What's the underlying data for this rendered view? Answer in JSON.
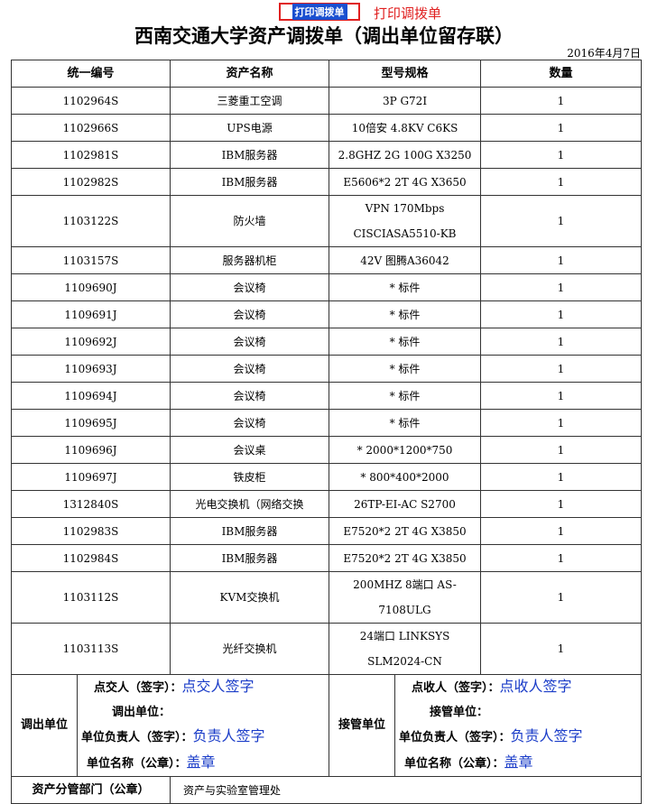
{
  "header": {
    "print_button": "打印调拨单",
    "print_link": "打印调拨单",
    "title": "西南交通大学资产调拨单（调出单位留存联）",
    "date": "2016年4月7日"
  },
  "table": {
    "columns": [
      "统一编号",
      "资产名称",
      "型号规格",
      "数量"
    ],
    "rows": [
      [
        "1102964S",
        "三菱重工空调",
        "3P G72I",
        1
      ],
      [
        "1102966S",
        "UPS电源",
        "10倍安 4.8KV C6KS",
        1
      ],
      [
        "1102981S",
        "IBM服务器",
        "2.8GHZ 2G 100G X3250",
        1
      ],
      [
        "1102982S",
        "IBM服务器",
        "E5606*2 2T 4G X3650",
        1
      ],
      [
        "1103122S",
        "防火墙",
        "VPN 170Mbps CISCIASA5510-KB",
        1
      ],
      [
        "1103157S",
        "服务器机柜",
        "42V 图腾A36042",
        1
      ],
      [
        "1109690J",
        "会议椅",
        "* 标件",
        1
      ],
      [
        "1109691J",
        "会议椅",
        "* 标件",
        1
      ],
      [
        "1109692J",
        "会议椅",
        "* 标件",
        1
      ],
      [
        "1109693J",
        "会议椅",
        "* 标件",
        1
      ],
      [
        "1109694J",
        "会议椅",
        "* 标件",
        1
      ],
      [
        "1109695J",
        "会议椅",
        "* 标件",
        1
      ],
      [
        "1109696J",
        "会议桌",
        "* 2000*1200*750",
        1
      ],
      [
        "1109697J",
        "铁皮柜",
        "* 800*400*2000",
        1
      ],
      [
        "1312840S",
        "光电交换机（网络交换",
        "26TP-EI-AC S2700",
        1
      ],
      [
        "1102983S",
        "IBM服务器",
        "E7520*2 2T 4G X3850",
        1
      ],
      [
        "1102984S",
        "IBM服务器",
        "E7520*2 2T 4G X3850",
        1
      ],
      [
        "1103112S",
        "KVM交换机",
        "200MHZ 8端口 AS-7108ULG",
        1
      ],
      [
        "1103113S",
        "光纤交换机",
        "24端口 LINKSYS SLM2024-CN",
        1
      ]
    ]
  },
  "sign": {
    "left": {
      "label": "调出单位",
      "lines": [
        {
          "label": "点交人（签字）：",
          "value": "点交人签字"
        },
        {
          "label": "调出单位："
        },
        {
          "label": "单位负责人（签字）：",
          "value": "负责人签字"
        },
        {
          "label": "单位名称（公章）：",
          "value": "盖章"
        }
      ]
    },
    "right": {
      "label": "接管单位",
      "lines": [
        {
          "label": "点收人（签字）：",
          "value": "点收人签字"
        },
        {
          "label": "接管单位："
        },
        {
          "label": "单位负责人（签字）：",
          "value": "负责人签字"
        },
        {
          "label": "单位名称（公章）：",
          "value": "盖章"
        }
      ]
    }
  },
  "footer": {
    "label": "资产分管部门（公章）",
    "value": "资产与实验室管理处"
  }
}
